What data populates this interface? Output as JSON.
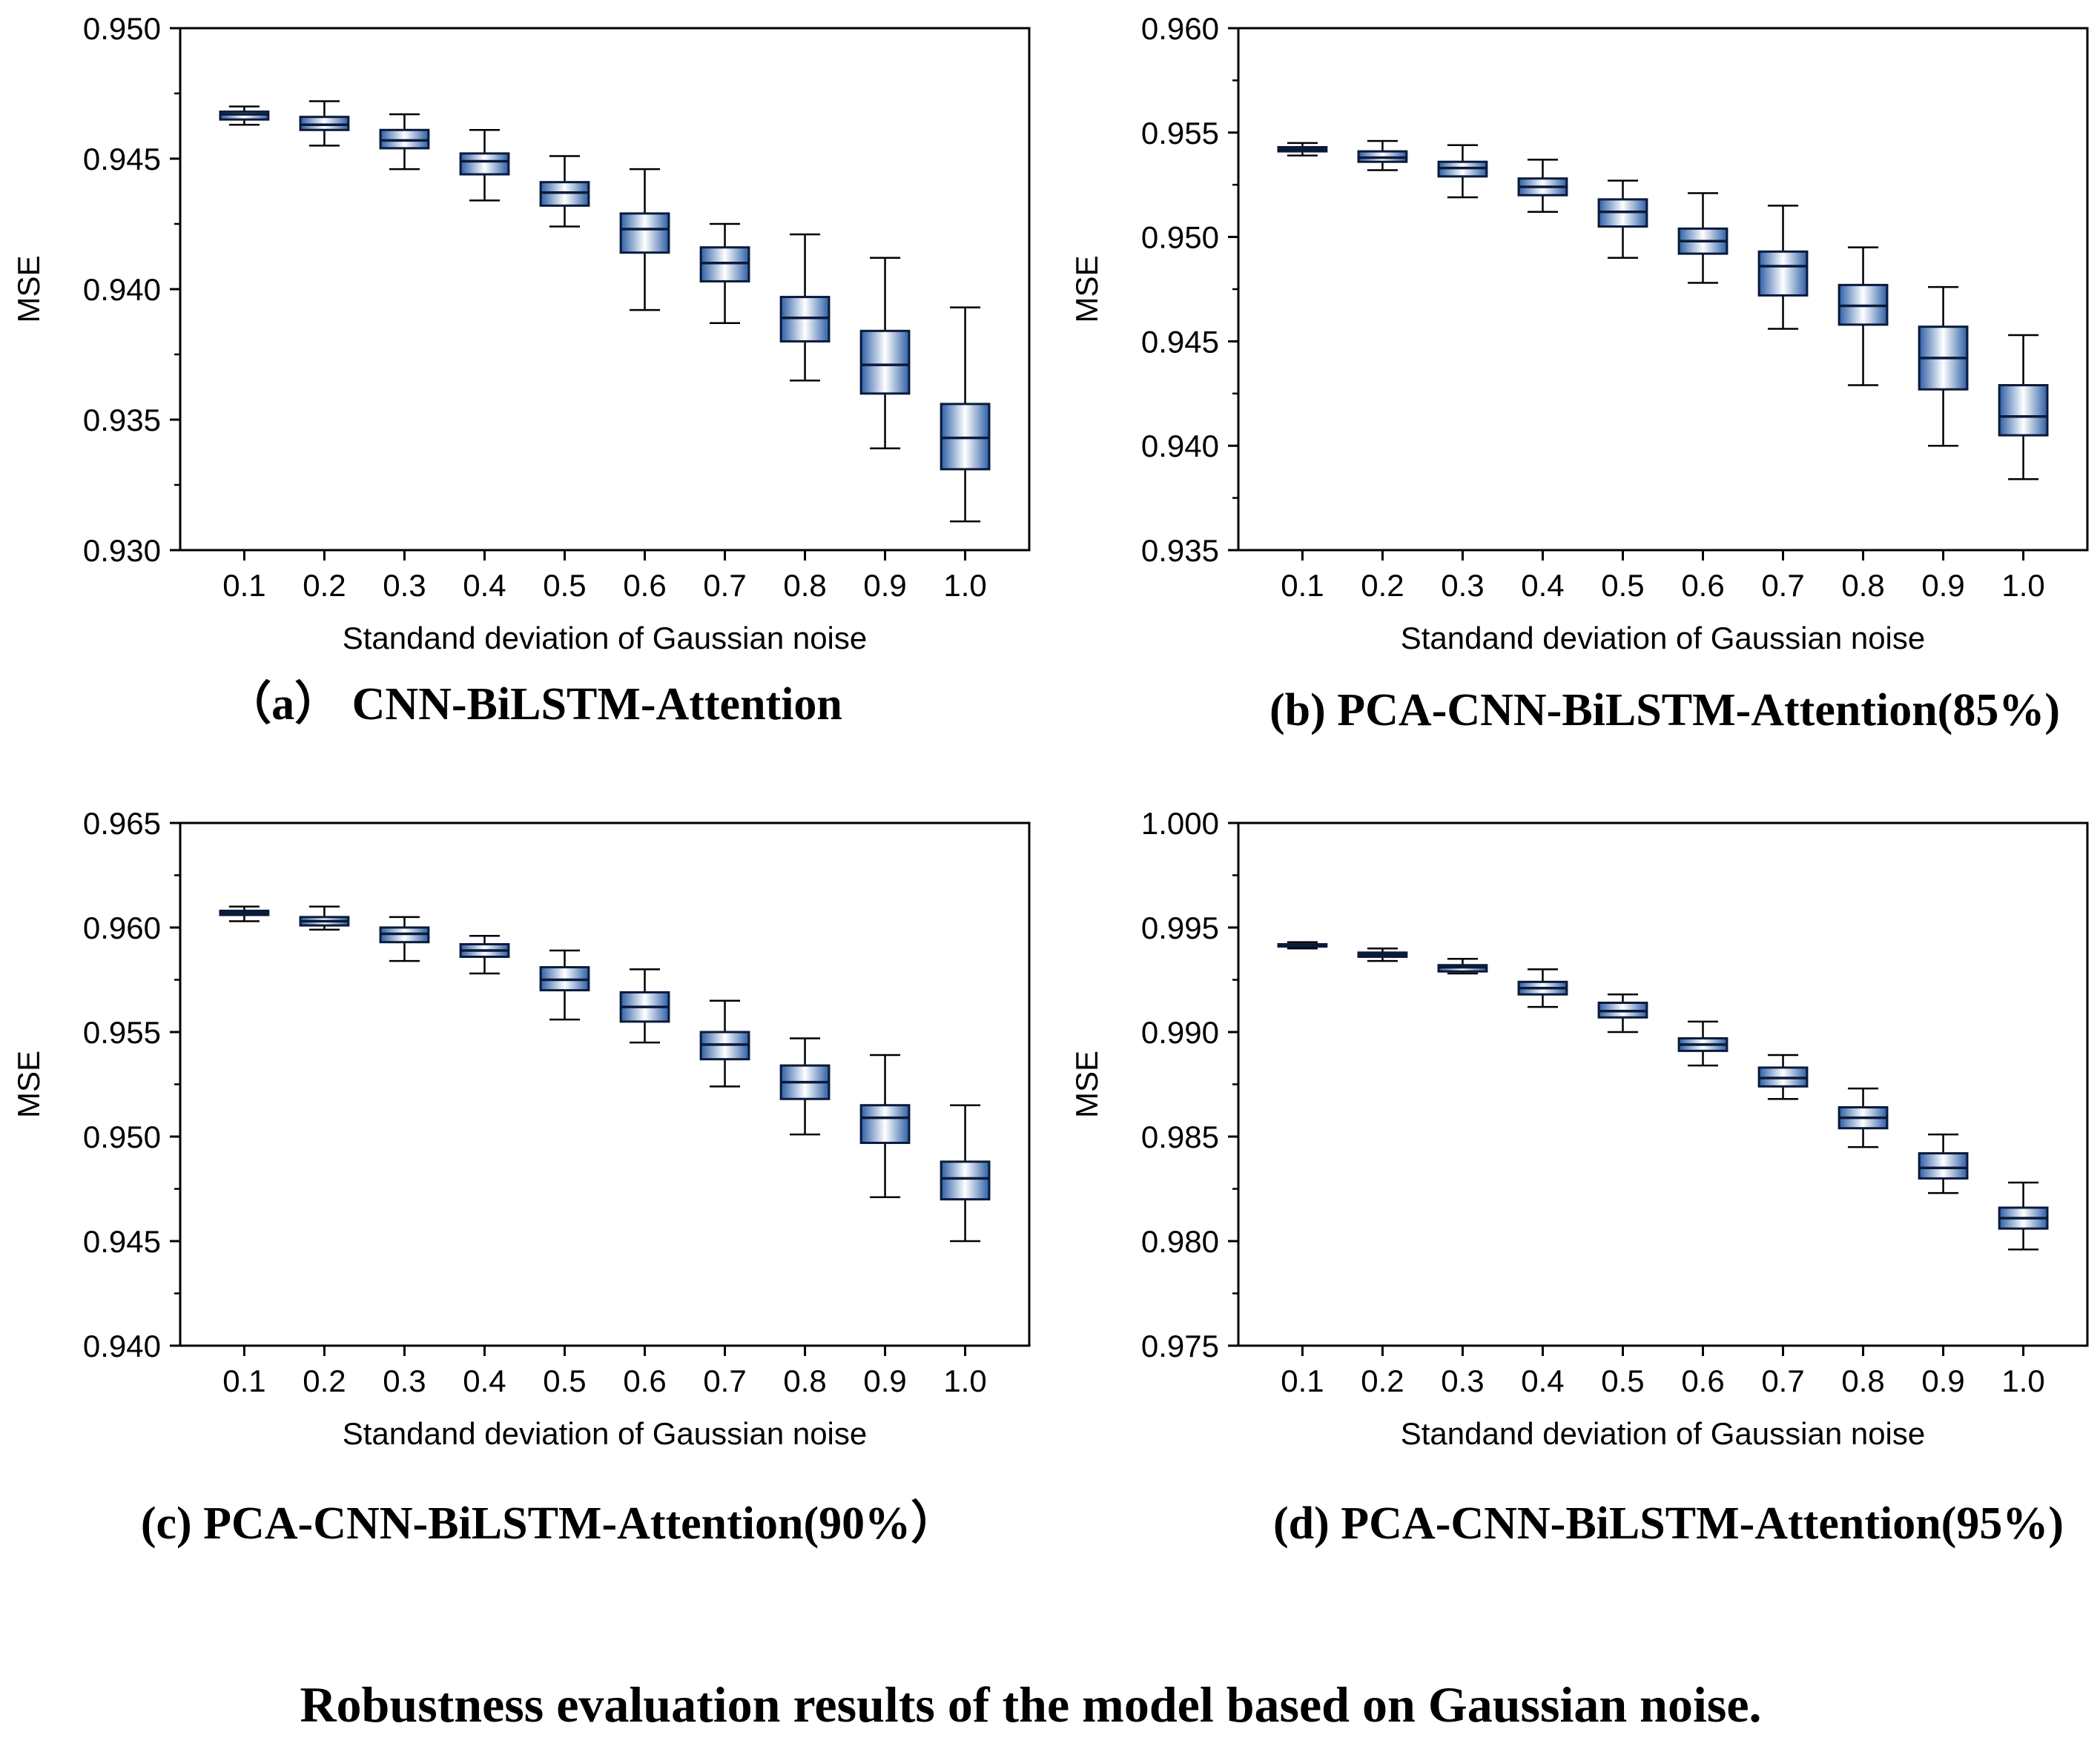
{
  "figure_caption": "Robustness evaluation results of the model based on Gaussian noise.",
  "colors": {
    "box_edge": "#0a1a3a",
    "box_fill_center": "#ffffff",
    "box_fill_edge": "#2d5fa6",
    "whisker": "#000000",
    "axis": "#000000"
  },
  "chart_data": [
    {
      "type": "box",
      "caption": "（a） CNN-BiLSTM-Attention",
      "xlabel": "Standand deviation of Gaussian noise",
      "ylabel": "MSE",
      "ylim": [
        0.93,
        0.95
      ],
      "yticks": [
        "0.930",
        "0.935",
        "0.940",
        "0.945",
        "0.950"
      ],
      "categories": [
        "0.1",
        "0.2",
        "0.3",
        "0.4",
        "0.5",
        "0.6",
        "0.7",
        "0.8",
        "0.9",
        "1.0"
      ],
      "boxes": [
        {
          "min": 0.9463,
          "q1": 0.9465,
          "median": 0.9467,
          "q3": 0.9468,
          "max": 0.947
        },
        {
          "min": 0.9455,
          "q1": 0.9461,
          "median": 0.9463,
          "q3": 0.9466,
          "max": 0.9472
        },
        {
          "min": 0.9446,
          "q1": 0.9454,
          "median": 0.9457,
          "q3": 0.9461,
          "max": 0.9467
        },
        {
          "min": 0.9434,
          "q1": 0.9444,
          "median": 0.9449,
          "q3": 0.9452,
          "max": 0.9461
        },
        {
          "min": 0.9424,
          "q1": 0.9432,
          "median": 0.9437,
          "q3": 0.9441,
          "max": 0.9451
        },
        {
          "min": 0.9392,
          "q1": 0.9414,
          "median": 0.9423,
          "q3": 0.9429,
          "max": 0.9446
        },
        {
          "min": 0.9387,
          "q1": 0.9403,
          "median": 0.941,
          "q3": 0.9416,
          "max": 0.9425
        },
        {
          "min": 0.9365,
          "q1": 0.938,
          "median": 0.9389,
          "q3": 0.9397,
          "max": 0.9421
        },
        {
          "min": 0.9339,
          "q1": 0.936,
          "median": 0.9371,
          "q3": 0.9384,
          "max": 0.9412
        },
        {
          "min": 0.9311,
          "q1": 0.9331,
          "median": 0.9343,
          "q3": 0.9356,
          "max": 0.9393
        }
      ]
    },
    {
      "type": "box",
      "caption": "(b) PCA-CNN-BiLSTM-Attention(85%)",
      "xlabel": "Standand deviation of Gaussian noise",
      "ylabel": "MSE",
      "ylim": [
        0.935,
        0.96
      ],
      "yticks": [
        "0.935",
        "0.940",
        "0.945",
        "0.950",
        "0.955",
        "0.960"
      ],
      "categories": [
        "0.1",
        "0.2",
        "0.3",
        "0.4",
        "0.5",
        "0.6",
        "0.7",
        "0.8",
        "0.9",
        "1.0"
      ],
      "boxes": [
        {
          "min": 0.9539,
          "q1": 0.9541,
          "median": 0.9542,
          "q3": 0.9543,
          "max": 0.9545
        },
        {
          "min": 0.9532,
          "q1": 0.9536,
          "median": 0.9538,
          "q3": 0.9541,
          "max": 0.9546
        },
        {
          "min": 0.9519,
          "q1": 0.9529,
          "median": 0.9533,
          "q3": 0.9536,
          "max": 0.9544
        },
        {
          "min": 0.9512,
          "q1": 0.952,
          "median": 0.9524,
          "q3": 0.9528,
          "max": 0.9537
        },
        {
          "min": 0.949,
          "q1": 0.9505,
          "median": 0.9512,
          "q3": 0.9518,
          "max": 0.9527
        },
        {
          "min": 0.9478,
          "q1": 0.9492,
          "median": 0.9498,
          "q3": 0.9504,
          "max": 0.9521
        },
        {
          "min": 0.9456,
          "q1": 0.9472,
          "median": 0.9486,
          "q3": 0.9493,
          "max": 0.9515
        },
        {
          "min": 0.9429,
          "q1": 0.9458,
          "median": 0.9467,
          "q3": 0.9477,
          "max": 0.9495
        },
        {
          "min": 0.94,
          "q1": 0.9427,
          "median": 0.9442,
          "q3": 0.9457,
          "max": 0.9476
        },
        {
          "min": 0.9384,
          "q1": 0.9405,
          "median": 0.9414,
          "q3": 0.9429,
          "max": 0.9453
        }
      ]
    },
    {
      "type": "box",
      "caption": "(c) PCA-CNN-BiLSTM-Attention(90%）",
      "xlabel": "Standand deviation of Gaussian noise",
      "ylabel": "MSE",
      "ylim": [
        0.94,
        0.965
      ],
      "yticks": [
        "0.940",
        "0.945",
        "0.950",
        "0.955",
        "0.960",
        "0.965"
      ],
      "categories": [
        "0.1",
        "0.2",
        "0.3",
        "0.4",
        "0.5",
        "0.6",
        "0.7",
        "0.8",
        "0.9",
        "1.0"
      ],
      "boxes": [
        {
          "min": 0.9603,
          "q1": 0.9606,
          "median": 0.9607,
          "q3": 0.9608,
          "max": 0.961
        },
        {
          "min": 0.9599,
          "q1": 0.9601,
          "median": 0.9603,
          "q3": 0.9605,
          "max": 0.961
        },
        {
          "min": 0.9584,
          "q1": 0.9593,
          "median": 0.9597,
          "q3": 0.96,
          "max": 0.9605
        },
        {
          "min": 0.9578,
          "q1": 0.9586,
          "median": 0.9589,
          "q3": 0.9592,
          "max": 0.9596
        },
        {
          "min": 0.9556,
          "q1": 0.957,
          "median": 0.9575,
          "q3": 0.9581,
          "max": 0.9589
        },
        {
          "min": 0.9545,
          "q1": 0.9555,
          "median": 0.9562,
          "q3": 0.9569,
          "max": 0.958
        },
        {
          "min": 0.9524,
          "q1": 0.9537,
          "median": 0.9544,
          "q3": 0.955,
          "max": 0.9565
        },
        {
          "min": 0.9501,
          "q1": 0.9518,
          "median": 0.9526,
          "q3": 0.9534,
          "max": 0.9547
        },
        {
          "min": 0.9471,
          "q1": 0.9497,
          "median": 0.9509,
          "q3": 0.9515,
          "max": 0.9539
        },
        {
          "min": 0.945,
          "q1": 0.947,
          "median": 0.948,
          "q3": 0.9488,
          "max": 0.9515
        }
      ]
    },
    {
      "type": "box",
      "caption": "(d) PCA-CNN-BiLSTM-Attention(95%)",
      "xlabel": "Standand deviation of Gaussian noise",
      "ylabel": "MSE",
      "ylim": [
        0.975,
        1.0
      ],
      "yticks": [
        "0.975",
        "0.980",
        "0.985",
        "0.990",
        "0.995",
        "1.000"
      ],
      "categories": [
        "0.1",
        "0.2",
        "0.3",
        "0.4",
        "0.5",
        "0.6",
        "0.7",
        "0.8",
        "0.9",
        "1.0"
      ],
      "boxes": [
        {
          "min": 0.994,
          "q1": 0.9941,
          "median": 0.9941,
          "q3": 0.9942,
          "max": 0.9943
        },
        {
          "min": 0.9934,
          "q1": 0.9936,
          "median": 0.9937,
          "q3": 0.9938,
          "max": 0.994
        },
        {
          "min": 0.9928,
          "q1": 0.9929,
          "median": 0.9931,
          "q3": 0.9932,
          "max": 0.9935
        },
        {
          "min": 0.9912,
          "q1": 0.9918,
          "median": 0.9921,
          "q3": 0.9924,
          "max": 0.993
        },
        {
          "min": 0.99,
          "q1": 0.9907,
          "median": 0.991,
          "q3": 0.9914,
          "max": 0.9918
        },
        {
          "min": 0.9884,
          "q1": 0.9891,
          "median": 0.9894,
          "q3": 0.9897,
          "max": 0.9905
        },
        {
          "min": 0.9868,
          "q1": 0.9874,
          "median": 0.9878,
          "q3": 0.9883,
          "max": 0.9889
        },
        {
          "min": 0.9845,
          "q1": 0.9854,
          "median": 0.9859,
          "q3": 0.9864,
          "max": 0.9873
        },
        {
          "min": 0.9823,
          "q1": 0.983,
          "median": 0.9835,
          "q3": 0.9842,
          "max": 0.9851
        },
        {
          "min": 0.9796,
          "q1": 0.9806,
          "median": 0.9811,
          "q3": 0.9816,
          "max": 0.9828
        }
      ]
    }
  ]
}
